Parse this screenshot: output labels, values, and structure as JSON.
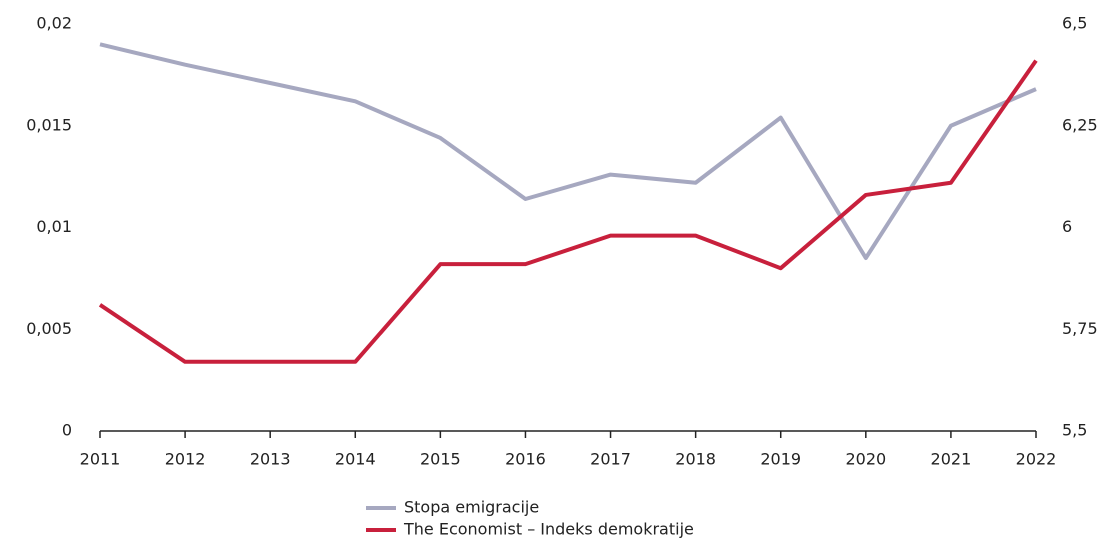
{
  "chart_data": {
    "type": "line",
    "categories": [
      "2011",
      "2012",
      "2013",
      "2014",
      "2015",
      "2016",
      "2017",
      "2018",
      "2019",
      "2020",
      "2021",
      "2022"
    ],
    "series": [
      {
        "name": "Stopa emigracije",
        "color": "#a6a8c0",
        "axis": "y",
        "values": [
          0.019,
          0.018,
          0.0171,
          0.0162,
          0.0144,
          0.0114,
          0.0126,
          0.0122,
          0.0154,
          0.0085,
          0.015,
          0.0168
        ]
      },
      {
        "name": "The Economist – Indeks demokratije",
        "color": "#c8203c",
        "axis": "y2",
        "values": [
          5.81,
          5.67,
          5.67,
          5.67,
          5.91,
          5.91,
          5.98,
          5.98,
          5.9,
          6.08,
          6.11,
          6.41
        ]
      }
    ],
    "ylim": [
      0,
      0.02
    ],
    "yticks": [
      0,
      {
        "value": 0.005,
        "label": "0,005"
      },
      {
        "value": 0.01,
        "label": "0,01"
      },
      {
        "value": 0.015,
        "label": "0,015"
      },
      {
        "value": 0.02,
        "label": "0,02"
      }
    ],
    "y2lim": [
      5.5,
      6.5
    ],
    "y2ticks": [
      {
        "value": 5.5,
        "label": "5,5"
      },
      {
        "value": 5.75,
        "label": "5,75"
      },
      6,
      {
        "value": 6.25,
        "label": "6,25"
      },
      {
        "value": 6.5,
        "label": "6,5"
      }
    ],
    "legend": "bottom"
  }
}
